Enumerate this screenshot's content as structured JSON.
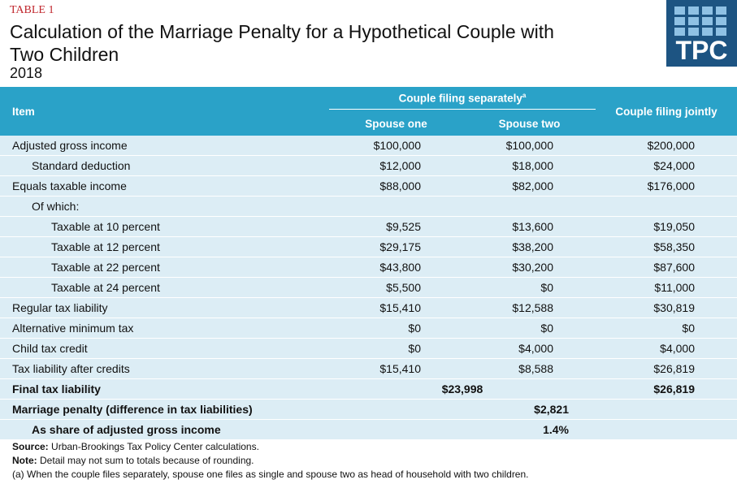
{
  "header": {
    "label": "TABLE 1",
    "title": "Calculation of the Marriage Penalty for a Hypothetical Couple with Two Children",
    "year": "2018",
    "logo": "TPC"
  },
  "table": {
    "columns": {
      "item": "Item",
      "group": "Couple filing separately",
      "group_note": "a",
      "spouse_one": "Spouse one",
      "spouse_two": "Spouse two",
      "joint": "Couple filing jointly"
    },
    "rows": [
      {
        "label": "Adjusted gross income",
        "values": [
          "$100,000",
          "$100,000",
          "$200,000"
        ]
      },
      {
        "label": "Standard deduction",
        "values": [
          "$12,000",
          "$18,000",
          "$24,000"
        ]
      },
      {
        "label": "Equals taxable income",
        "values": [
          "$88,000",
          "$82,000",
          "$176,000"
        ]
      },
      {
        "label": "Of which:"
      },
      {
        "label": "Taxable at 10 percent",
        "values": [
          "$9,525",
          "$13,600",
          "$19,050"
        ]
      },
      {
        "label": "Taxable at 12 percent",
        "values": [
          "$29,175",
          "$38,200",
          "$58,350"
        ]
      },
      {
        "label": "Taxable at 22 percent",
        "values": [
          "$43,800",
          "$30,200",
          "$87,600"
        ]
      },
      {
        "label": "Taxable at 24 percent",
        "values": [
          "$5,500",
          "$0",
          "$11,000"
        ]
      },
      {
        "label": "Regular tax liability",
        "values": [
          "$15,410",
          "$12,588",
          "$30,819"
        ]
      },
      {
        "label": "Alternative minimum tax",
        "values": [
          "$0",
          "$0",
          "$0"
        ]
      },
      {
        "label": "Child tax credit",
        "values": [
          "$0",
          "$4,000",
          "$4,000"
        ]
      },
      {
        "label": "Tax liability after credits",
        "values": [
          "$15,410",
          "$8,588",
          "$26,819"
        ]
      }
    ],
    "final": {
      "label": "Final tax liability",
      "separate": "$23,998",
      "joint": "$26,819"
    },
    "penalty": {
      "label": "Marriage penalty (difference in tax liabilities)",
      "value": "$2,821"
    },
    "share": {
      "label": "As share of adjusted gross income",
      "value": "1.4%"
    }
  },
  "notes": {
    "source_label": "Source:",
    "source": "Urban-Brookings Tax Policy Center calculations.",
    "note_label": "Note:",
    "note": "Detail may not sum to totals because of rounding.",
    "footnote": "(a) When the couple files separately, spouse one files as single and spouse two as head of household with two children."
  }
}
